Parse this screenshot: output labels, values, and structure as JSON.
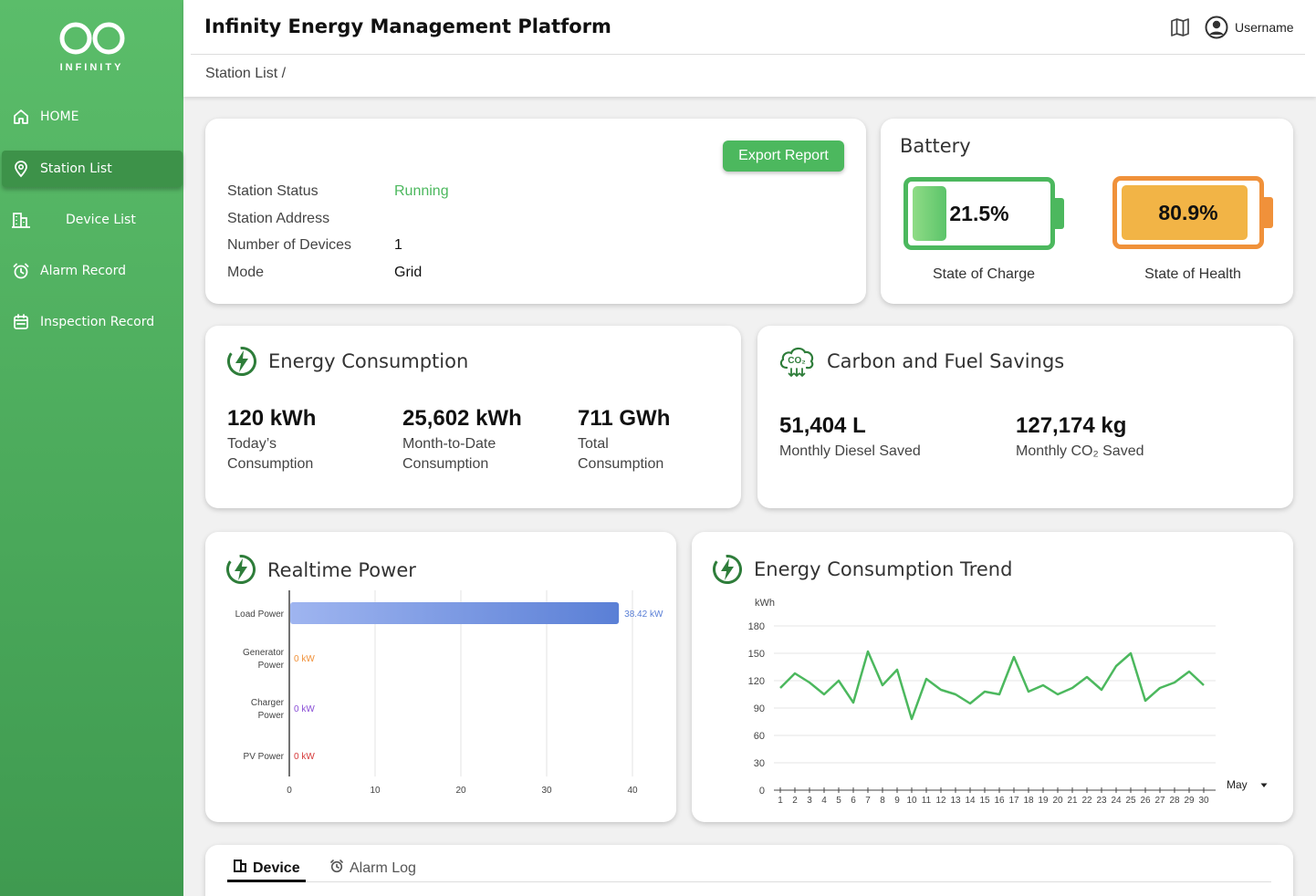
{
  "brand": {
    "name": "INFINITY"
  },
  "sidebar": {
    "items": [
      {
        "label": "HOME",
        "icon": "home-icon"
      },
      {
        "label": "Station List",
        "icon": "location-pin-icon",
        "active": true
      },
      {
        "label": "Device List",
        "icon": "building-icon"
      },
      {
        "label": "Alarm Record",
        "icon": "alarm-clock-icon"
      },
      {
        "label": "Inspection Record",
        "icon": "calendar-icon"
      }
    ]
  },
  "header": {
    "title": "Infinity Energy Management Platform",
    "breadcrumb": "Station List /",
    "username": "Username"
  },
  "station": {
    "export_label": "Export Report",
    "fields": [
      {
        "label": "Station Status",
        "value": "Running"
      },
      {
        "label": "Station Address",
        "value": ""
      },
      {
        "label": "Number of Devices",
        "value": "1"
      },
      {
        "label": "Mode",
        "value": "Grid"
      }
    ],
    "status_color": "#4cb85e"
  },
  "battery": {
    "title": "Battery",
    "soc": {
      "value": "21.5%",
      "fraction": 0.215,
      "label": "State of Charge",
      "color": "#4cb85e"
    },
    "soh": {
      "value": "80.9%",
      "fraction": 0.809,
      "label": "State of Health",
      "color": "#f0913a"
    }
  },
  "energy": {
    "title": "Energy Consumption",
    "stats": [
      {
        "value": "120  kWh",
        "label": "Today’s Consumption"
      },
      {
        "value": "25,602  kWh",
        "label": "Month-to-Date Consumption"
      },
      {
        "value": "711  GWh",
        "label": "Total Consumption"
      }
    ]
  },
  "carbon": {
    "title": "Carbon and Fuel Savings",
    "stats": [
      {
        "value": "51,404  L",
        "label": "Monthly Diesel Saved"
      },
      {
        "value": "127,174  kg",
        "label": "Monthly CO₂ Saved"
      }
    ]
  },
  "realtime": {
    "title": "Realtime Power",
    "chart_data": {
      "type": "bar",
      "orientation": "horizontal",
      "categories": [
        "Load Power",
        "Generator Power",
        "Charger Power",
        "PV Power"
      ],
      "category_lines": [
        [
          "Load Power"
        ],
        [
          "Generator",
          "Power"
        ],
        [
          "Charger",
          "Power"
        ],
        [
          "PV Power"
        ]
      ],
      "values": [
        38.42,
        0,
        0,
        0
      ],
      "value_labels": [
        "38.42 kW",
        "0 kW",
        "0 kW",
        "0 kW"
      ],
      "label_colors": [
        "#5a7fd6",
        "#f0913a",
        "#8a4fd6",
        "#d63a3a"
      ],
      "xlim": [
        0,
        40
      ],
      "xticks": [
        0,
        10,
        20,
        30,
        40
      ],
      "grid": true
    }
  },
  "trend": {
    "title": "Energy Consumption Trend",
    "month": "May",
    "chart_data": {
      "type": "line",
      "ylabel": "kWh",
      "ylim": [
        0,
        180
      ],
      "yticks": [
        0,
        30,
        60,
        90,
        120,
        150,
        180
      ],
      "x": [
        1,
        2,
        3,
        4,
        5,
        6,
        7,
        8,
        9,
        10,
        11,
        12,
        13,
        14,
        15,
        16,
        17,
        18,
        19,
        20,
        21,
        22,
        23,
        24,
        25,
        26,
        27,
        28,
        29,
        30
      ],
      "values": [
        112,
        128,
        118,
        105,
        120,
        96,
        152,
        115,
        132,
        78,
        122,
        110,
        105,
        95,
        108,
        105,
        146,
        108,
        115,
        105,
        112,
        124,
        110,
        136,
        150,
        98,
        112,
        118,
        130,
        115
      ],
      "color": "#4cb85e",
      "grid": true
    }
  },
  "tabs": [
    {
      "label": "Device",
      "icon": "building-icon",
      "active": true
    },
    {
      "label": "Alarm Log",
      "icon": "alarm-clock-icon",
      "active": false
    }
  ]
}
